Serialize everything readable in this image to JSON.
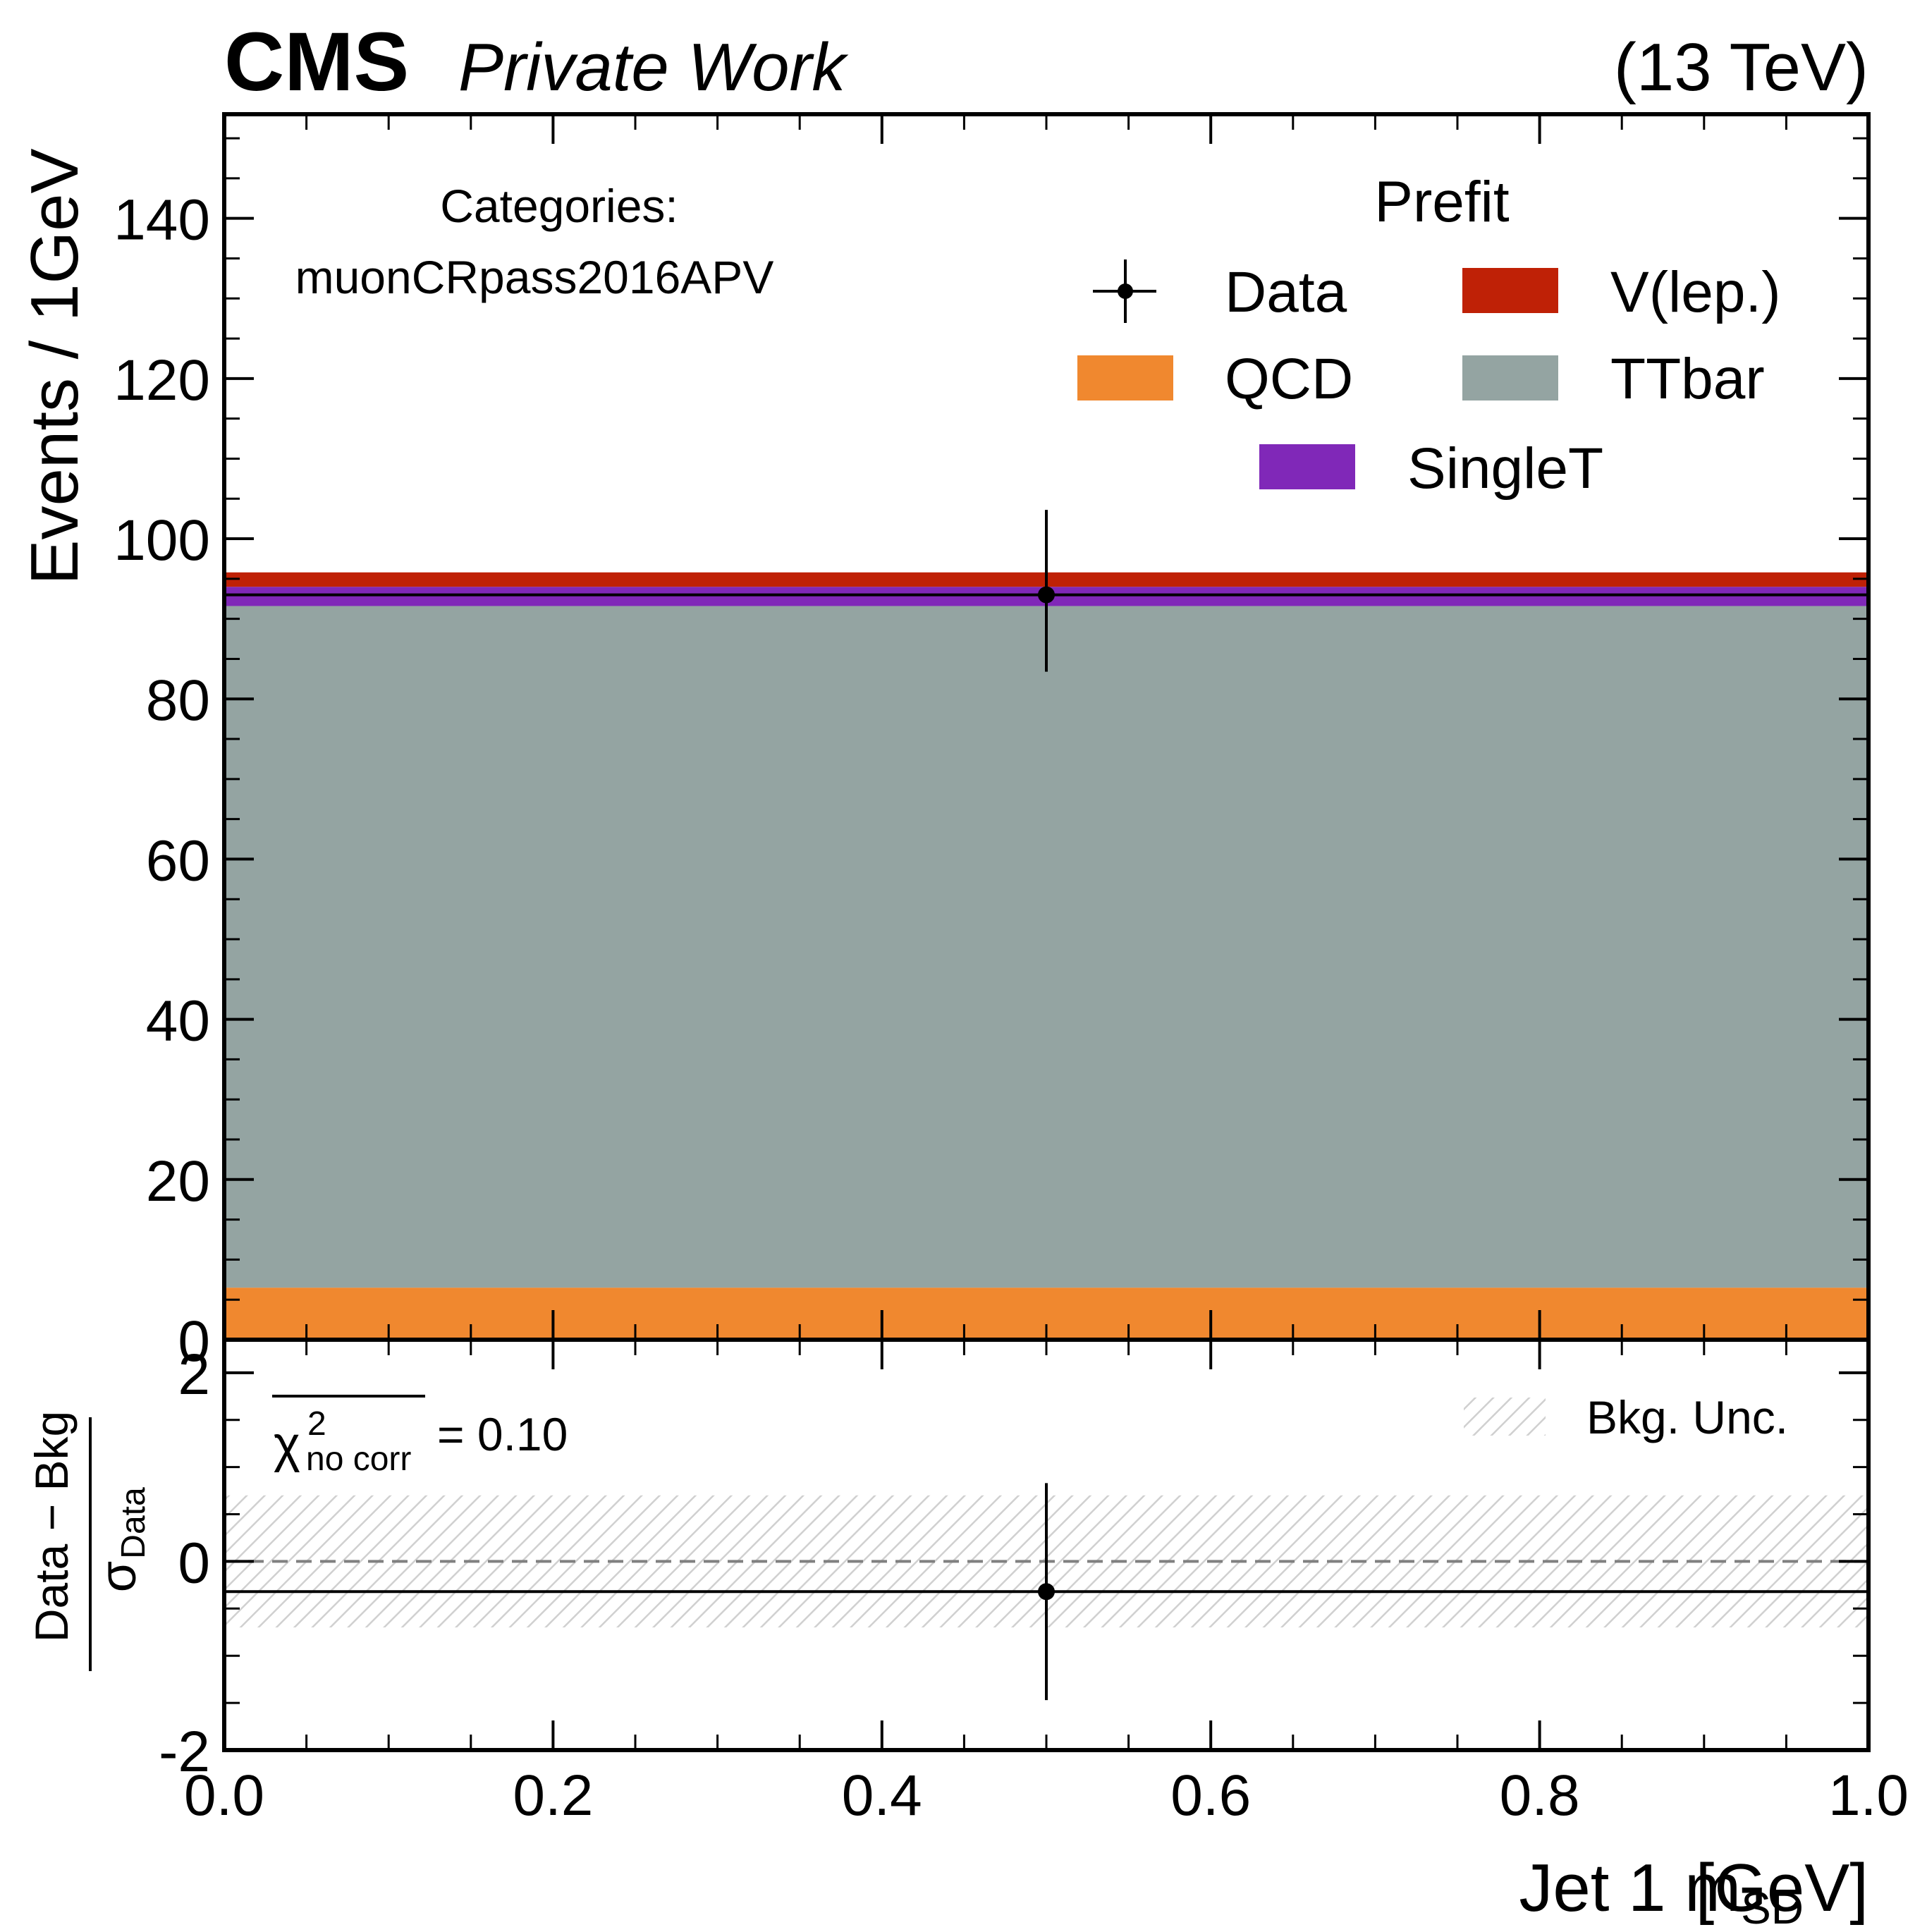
{
  "header": {
    "experiment": "CMS",
    "label": "Private Work",
    "energy": "(13 TeV)"
  },
  "main_panel": {
    "ylabel": "Events / 1GeV",
    "category_title": "Categories:",
    "category_name": "muonCRpass2016APV",
    "legend_title": "Prefit"
  },
  "ratio_panel": {
    "ylabel_num": "Data − Bkg",
    "ylabel_den": "σ",
    "ylabel_den_sub": "Data",
    "chi2_symbol": "χ",
    "chi2_sup": "2",
    "chi2_sub": "no corr",
    "chi2_value": "= 0.10",
    "unc_legend": "Bkg. Unc."
  },
  "xaxis": {
    "label_main": "Jet 1 m",
    "label_sub": "SD",
    "label_unit": "[GeV]"
  },
  "colors": {
    "qcd": "#f0882f",
    "ttbar": "#94a4a2",
    "singlet": "#8028b8",
    "vlep": "#bf2106",
    "data": "#000000",
    "unc_hatch": "#d0d0d0"
  },
  "chart_data": [
    {
      "type": "bar",
      "stacked": true,
      "x_edges": [
        0.0,
        1.0
      ],
      "xlim": [
        0.0,
        1.0
      ],
      "ylim": [
        0,
        153
      ],
      "yticks": [
        "0",
        "20",
        "40",
        "60",
        "80",
        "100",
        "120",
        "140"
      ],
      "ylabel": "Events / 1GeV",
      "series": [
        {
          "name": "QCD",
          "key": "qcd",
          "values": [
            6.5
          ]
        },
        {
          "name": "TTbar",
          "key": "ttbar",
          "values": [
            85.1
          ]
        },
        {
          "name": "SingleT",
          "key": "singlet",
          "values": [
            2.4
          ]
        },
        {
          "name": "V(lep.)",
          "key": "vlep",
          "values": [
            1.8
          ]
        }
      ],
      "data": {
        "name": "Data",
        "x": [
          0.5
        ],
        "y": [
          93
        ],
        "yerr_low": [
          9.6
        ],
        "yerr_high": [
          10.6
        ]
      },
      "legend_order": [
        [
          "Data",
          "V(lep.)"
        ],
        [
          "QCD",
          "TTbar"
        ],
        [
          "SingleT"
        ]
      ]
    },
    {
      "type": "scatter",
      "xlim": [
        0.0,
        1.0
      ],
      "ylim": [
        -2,
        2.35
      ],
      "yticks": [
        "-2",
        "0",
        "2"
      ],
      "xticks": [
        "0.0",
        "0.2",
        "0.4",
        "0.6",
        "0.8",
        "1.0"
      ],
      "xlabel": "Jet 1 mSD [GeV]",
      "pull": {
        "x": [
          0.5
        ],
        "y": [
          -0.32
        ],
        "yerr": [
          1.15
        ]
      },
      "bkg_unc_band": [
        -0.7,
        0.7
      ],
      "reference_line": 0
    }
  ]
}
